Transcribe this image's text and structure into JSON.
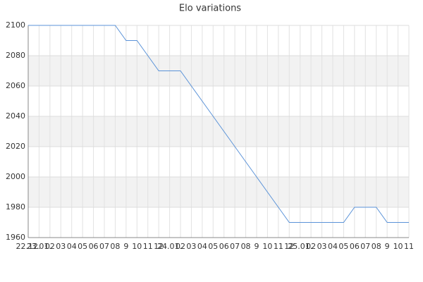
{
  "chart_data": {
    "type": "line",
    "title": "Elo variations",
    "categories": [
      "22.12.",
      "23.01.",
      "02",
      "03",
      "04",
      "05",
      "06",
      "07",
      "08",
      "9",
      "10",
      "11",
      "12",
      "24.01.",
      "02",
      "03",
      "04",
      "05",
      "06",
      "07",
      "08",
      "9",
      "10",
      "11",
      "12",
      "25.01.",
      "02",
      "03",
      "04",
      "05",
      "06",
      "07",
      "08",
      "9",
      "10",
      "11"
    ],
    "series": [
      {
        "name": "Elo",
        "color": "#5b93d8",
        "values": [
          2100,
          2100,
          2100,
          2100,
          2100,
          2100,
          2100,
          2100,
          2100,
          2090,
          2090,
          2080,
          2070,
          2070,
          2070,
          2060,
          2050,
          2040,
          2030,
          2020,
          2010,
          2000,
          1990,
          1980,
          1970,
          1970,
          1970,
          1970,
          1970,
          1970,
          1980,
          1980,
          1980,
          1970,
          1970,
          1970
        ]
      }
    ],
    "ylim": [
      1960,
      2100
    ],
    "yticks": [
      1960,
      1980,
      2000,
      2020,
      2040,
      2060,
      2080,
      2100
    ],
    "grid": true
  }
}
